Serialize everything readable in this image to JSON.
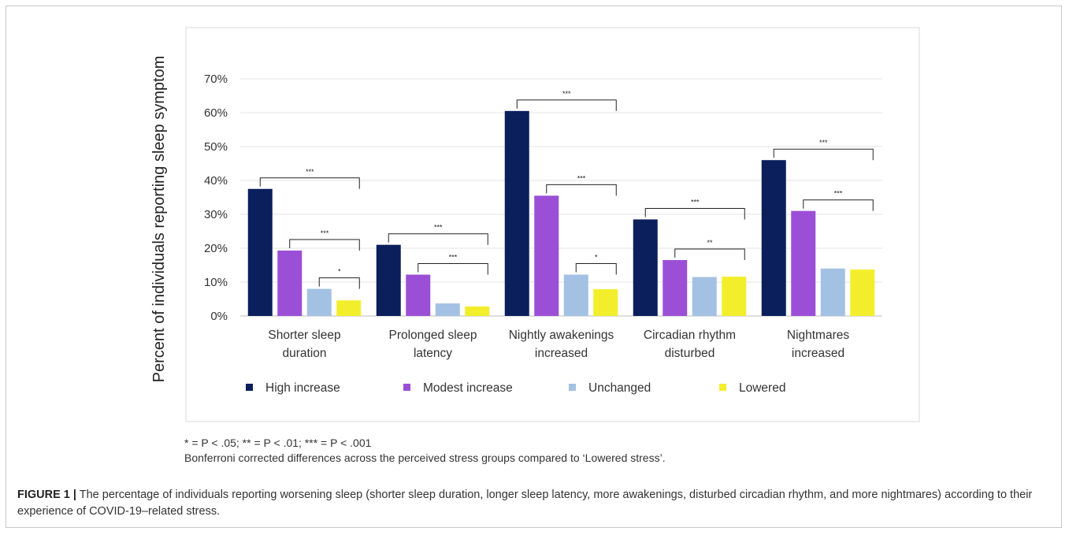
{
  "chart_data": {
    "type": "bar",
    "ylabel": "Percent of individuals reporting sleep symptom",
    "xlabel": "",
    "ylim": [
      0,
      70
    ],
    "yticks": [
      "0%",
      "10%",
      "20%",
      "30%",
      "40%",
      "50%",
      "60%",
      "70%"
    ],
    "grid": true,
    "legend_position": "bottom",
    "categories": [
      [
        "Shorter sleep",
        "duration"
      ],
      [
        "Prolonged sleep",
        "latency"
      ],
      [
        "Nightly awakenings",
        "increased"
      ],
      [
        "Circadian rhythm",
        "disturbed"
      ],
      [
        "Nightmares",
        "increased"
      ]
    ],
    "series": [
      {
        "name": "High increase",
        "color": "#0b1f5c",
        "values": [
          37.5,
          21,
          60.5,
          28.5,
          46
        ]
      },
      {
        "name": "Modest increase",
        "color": "#9b4fd6",
        "values": [
          19.3,
          12.2,
          35.5,
          16.5,
          31
        ]
      },
      {
        "name": "Unchanged",
        "color": "#a3c1e3",
        "values": [
          8,
          3.7,
          12.2,
          11.5,
          14
        ]
      },
      {
        "name": "Lowered",
        "color": "#f3ee2b",
        "values": [
          4.6,
          2.8,
          7.9,
          11.6,
          13.7
        ]
      }
    ],
    "significance": [
      [
        {
          "from": 0,
          "label": "***"
        },
        {
          "from": 1,
          "label": "***"
        },
        {
          "from": 2,
          "label": "*"
        }
      ],
      [
        {
          "from": 0,
          "label": "***"
        },
        {
          "from": 1,
          "label": "***"
        }
      ],
      [
        {
          "from": 0,
          "label": "***"
        },
        {
          "from": 1,
          "label": "***"
        },
        {
          "from": 2,
          "label": "*"
        }
      ],
      [
        {
          "from": 0,
          "label": "***"
        },
        {
          "from": 1,
          "label": "**"
        }
      ],
      [
        {
          "from": 0,
          "label": "***"
        },
        {
          "from": 1,
          "label": "***"
        }
      ]
    ]
  },
  "footnotes": {
    "line1": "* = P < .05; ** = P < .01; *** = P < .001",
    "line2": "Bonferroni corrected differences across the perceived stress groups compared to ‘Lowered stress’."
  },
  "caption": {
    "label": "FIGURE 1 |",
    "text": " The percentage of individuals reporting worsening sleep (shorter sleep duration, longer sleep latency, more awakenings, disturbed circadian rhythm, and more nightmares) according to their experience of COVID-19–related stress."
  }
}
